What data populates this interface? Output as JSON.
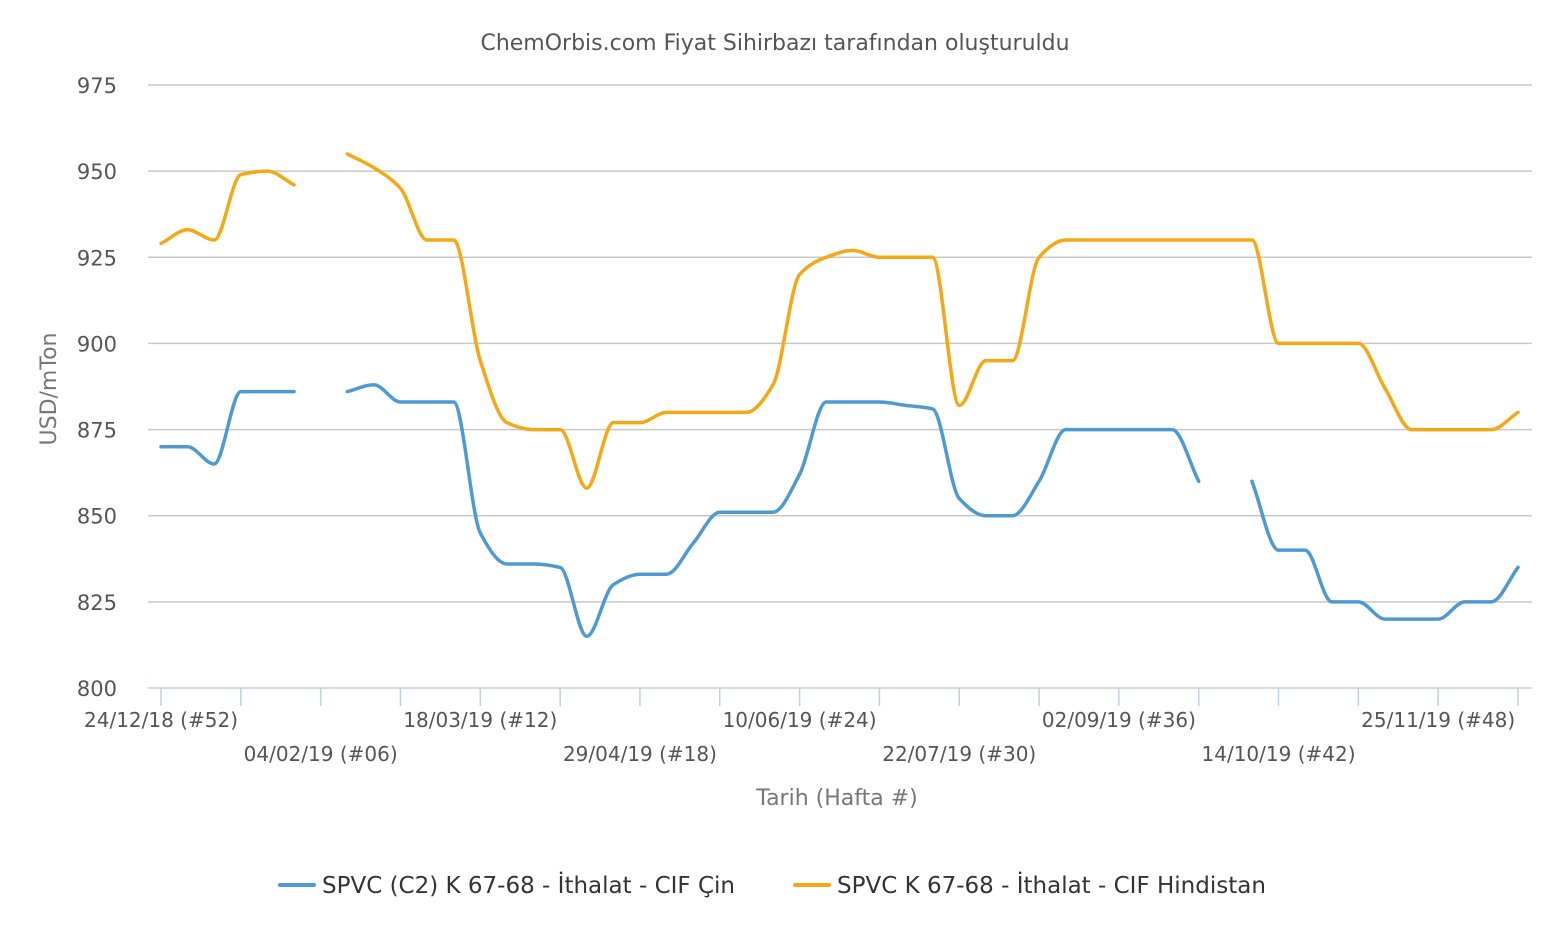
{
  "chart_data": {
    "type": "line",
    "title": "ChemOrbis.com Fiyat Sihirbazı tarafından oluşturuldu",
    "xlabel": "Tarih (Hafta #)",
    "ylabel": "USD/mTon",
    "ylim": [
      800,
      975
    ],
    "yticks": [
      800,
      825,
      850,
      875,
      900,
      925,
      950,
      975
    ],
    "grid": true,
    "legend_position": "bottom",
    "x_tick_labels": [
      {
        "week": 0,
        "label": "24/12/18 (#52)"
      },
      {
        "week": 6,
        "label": "04/02/19 (#06)"
      },
      {
        "week": 12,
        "label": "18/03/19 (#12)"
      },
      {
        "week": 18,
        "label": "29/04/19 (#18)"
      },
      {
        "week": 24,
        "label": "10/06/19 (#24)"
      },
      {
        "week": 30,
        "label": "22/07/19 (#30)"
      },
      {
        "week": 36,
        "label": "02/09/19 (#36)"
      },
      {
        "week": 42,
        "label": "14/10/19 (#42)"
      },
      {
        "week": 48,
        "label": "25/11/19 (#48)"
      }
    ],
    "x_minor_tick_weeks": [
      0,
      3,
      6,
      9,
      12,
      15,
      18,
      21,
      24,
      27,
      30,
      33,
      36,
      39,
      42,
      45,
      48,
      51
    ],
    "series": [
      {
        "name": "SPVC (C2) K 67-68 - İthalat - CIF Çin",
        "color": "#4e9ad0",
        "points": [
          [
            0,
            870
          ],
          [
            1,
            870
          ],
          [
            2,
            865
          ],
          [
            3,
            886
          ],
          [
            4,
            886
          ],
          [
            5,
            886
          ],
          null,
          [
            7,
            886
          ],
          [
            8,
            888
          ],
          [
            9,
            883
          ],
          [
            10,
            883
          ],
          [
            11,
            883
          ],
          [
            12,
            845
          ],
          [
            13,
            836
          ],
          [
            14,
            836
          ],
          [
            15,
            835
          ],
          [
            16,
            815
          ],
          [
            17,
            830
          ],
          [
            18,
            833
          ],
          [
            19,
            833
          ],
          [
            20,
            842
          ],
          [
            21,
            851
          ],
          [
            22,
            851
          ],
          [
            23,
            851
          ],
          [
            24,
            862
          ],
          [
            25,
            883
          ],
          [
            26,
            883
          ],
          [
            27,
            883
          ],
          [
            28,
            882
          ],
          [
            29,
            881
          ],
          [
            30,
            855
          ],
          [
            31,
            850
          ],
          [
            32,
            850
          ],
          [
            33,
            860
          ],
          [
            34,
            875
          ],
          [
            35,
            875
          ],
          [
            36,
            875
          ],
          [
            37,
            875
          ],
          [
            38,
            875
          ],
          [
            39,
            860
          ],
          null,
          [
            41,
            860
          ],
          [
            42,
            840
          ],
          [
            43,
            840
          ],
          [
            44,
            825
          ],
          [
            45,
            825
          ],
          [
            46,
            820
          ],
          [
            47,
            820
          ],
          [
            48,
            820
          ],
          [
            49,
            825
          ],
          [
            50,
            825
          ],
          [
            51,
            835
          ]
        ]
      },
      {
        "name": "SPVC K 67-68 - İthalat - CIF Hindistan",
        "color": "#f5a815",
        "points": [
          [
            0,
            929
          ],
          [
            1,
            933
          ],
          [
            2,
            930
          ],
          [
            3,
            949
          ],
          [
            4,
            950
          ],
          [
            5,
            946
          ],
          null,
          [
            7,
            955
          ],
          [
            8,
            951
          ],
          [
            9,
            945
          ],
          [
            10,
            930
          ],
          [
            11,
            930
          ],
          [
            12,
            895
          ],
          [
            13,
            877
          ],
          [
            14,
            875
          ],
          [
            15,
            875
          ],
          [
            16,
            858
          ],
          [
            17,
            877
          ],
          [
            18,
            877
          ],
          [
            19,
            880
          ],
          [
            20,
            880
          ],
          [
            21,
            880
          ],
          [
            22,
            880
          ],
          [
            23,
            888
          ],
          [
            24,
            920
          ],
          [
            25,
            925
          ],
          [
            26,
            927
          ],
          [
            27,
            925
          ],
          [
            28,
            925
          ],
          [
            29,
            925
          ],
          [
            30,
            882
          ],
          [
            31,
            895
          ],
          [
            32,
            895
          ],
          [
            33,
            925
          ],
          [
            34,
            930
          ],
          [
            35,
            930
          ],
          [
            36,
            930
          ],
          [
            37,
            930
          ],
          [
            38,
            930
          ],
          [
            39,
            930
          ],
          [
            40,
            930
          ],
          [
            41,
            930
          ],
          [
            42,
            900
          ],
          [
            43,
            900
          ],
          [
            44,
            900
          ],
          [
            45,
            900
          ],
          [
            46,
            887
          ],
          [
            47,
            875
          ],
          [
            48,
            875
          ],
          [
            49,
            875
          ],
          [
            50,
            875
          ],
          [
            51,
            880
          ]
        ]
      }
    ]
  }
}
